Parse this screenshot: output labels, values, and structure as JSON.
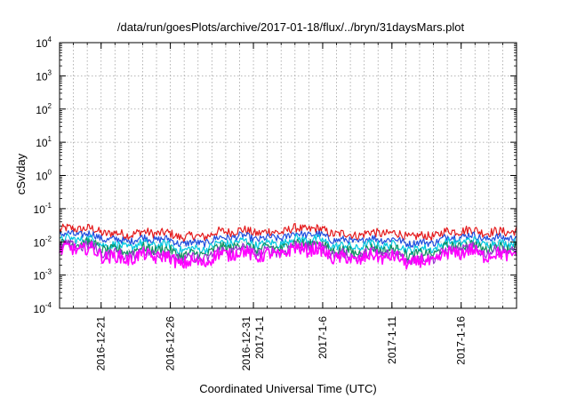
{
  "chart_data": {
    "type": "line",
    "title": "/data/run/goesPlots/archive/2017-01-18/flux/../bryn/31daysMars.plot",
    "xlabel": "Coordinated Universal Time (UTC)",
    "ylabel": "cSv/day",
    "y_scale": "log",
    "ylim": [
      0.0001,
      10000
    ],
    "y_ticks": [
      {
        "base": "10",
        "exp": "-4"
      },
      {
        "base": "10",
        "exp": "-3"
      },
      {
        "base": "10",
        "exp": "-2"
      },
      {
        "base": "10",
        "exp": "-1"
      },
      {
        "base": "10",
        "exp": "0"
      },
      {
        "base": "10",
        "exp": "1"
      },
      {
        "base": "10",
        "exp": "2"
      },
      {
        "base": "10",
        "exp": "3"
      },
      {
        "base": "10",
        "exp": "4"
      }
    ],
    "xlim": [
      "2016-12-18",
      "2017-01-20"
    ],
    "x_ticks": [
      {
        "date": "2016-12-21",
        "lines": [
          "2016-12-21"
        ]
      },
      {
        "date": "2016-12-26",
        "lines": [
          "2016-12-26"
        ]
      },
      {
        "date": "2017-01-01",
        "lines": [
          "2016-12-31",
          "2017-1-1"
        ]
      },
      {
        "date": "2017-01-06",
        "lines": [
          "2017-1-6"
        ]
      },
      {
        "date": "2017-01-11",
        "lines": [
          "2017-1-11"
        ]
      },
      {
        "date": "2017-01-16",
        "lines": [
          "2017-1-16"
        ]
      }
    ],
    "grid": true,
    "series": [
      {
        "color": "#e41a1c",
        "level": 0.019,
        "amp": 0.55
      },
      {
        "color": "#1f4fe0",
        "level": 0.0125,
        "amp": 0.45
      },
      {
        "color": "#00c8e0",
        "level": 0.0085,
        "amp": 0.5
      },
      {
        "color": "#109060",
        "level": 0.0062,
        "amp": 0.6
      },
      {
        "color": "#9b30d0",
        "level": 0.0048,
        "amp": 0.65
      },
      {
        "color": "#ff00ff",
        "level": 0.0038,
        "amp": 0.8
      }
    ]
  }
}
